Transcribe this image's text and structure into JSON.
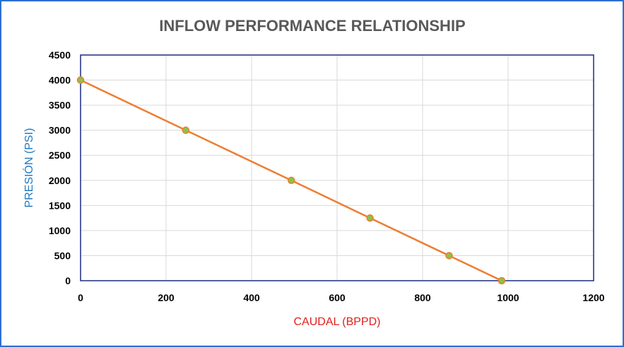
{
  "chart_data": {
    "type": "line",
    "title": "INFLOW PERFORMANCE RELATIONSHIP",
    "xlabel": "CAUDAL (BPPD)",
    "ylabel": "PRESIÓN (PSI)",
    "xlim": [
      0,
      1200
    ],
    "ylim": [
      0,
      4500
    ],
    "x_ticks": [
      0,
      200,
      400,
      600,
      800,
      1000,
      1200
    ],
    "y_ticks": [
      0,
      500,
      1000,
      1500,
      2000,
      2500,
      3000,
      3500,
      4000,
      4500
    ],
    "grid": true,
    "legend": "none",
    "series": [
      {
        "x": [
          0,
          246,
          493,
          677,
          862,
          985
        ],
        "y": [
          4000,
          3000,
          2000,
          1250,
          500,
          0
        ]
      }
    ],
    "colors": {
      "line": "#ed7d31",
      "marker_fill": "#8bc34a",
      "marker_edge": "#ed7d31",
      "xlabel": "#e0201e",
      "ylabel": "#1f7ac2",
      "frame": "#2e6fd1",
      "plot_border": "#1f2a80",
      "grid": "#d9d9d9"
    }
  }
}
